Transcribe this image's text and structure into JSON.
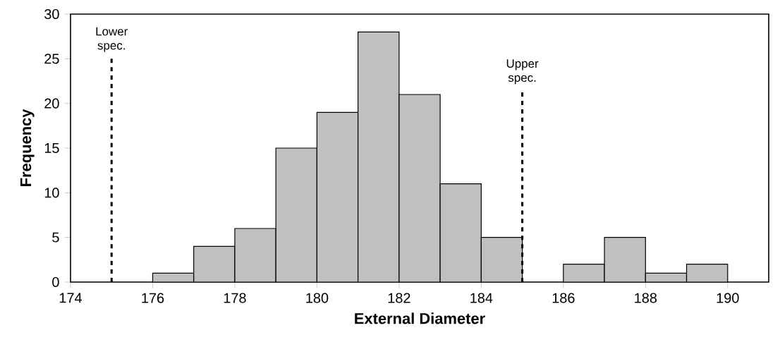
{
  "chart_data": {
    "type": "histogram",
    "xlabel": "External Diameter",
    "ylabel": "Frequency",
    "bins": [
      176,
      177,
      178,
      179,
      180,
      181,
      182,
      183,
      184,
      185,
      186,
      187,
      188,
      189,
      190
    ],
    "values": [
      1,
      4,
      6,
      15,
      19,
      28,
      21,
      11,
      5,
      0,
      2,
      5,
      1,
      2
    ],
    "color": "#c0c0c1",
    "xlim": [
      174,
      191
    ],
    "xticks": [
      174,
      176,
      178,
      180,
      182,
      184,
      186,
      188,
      190
    ],
    "ylim": [
      0,
      30
    ],
    "yticks": [
      0,
      5,
      10,
      15,
      20,
      25,
      30
    ],
    "grid": false,
    "ref_lines": [
      {
        "axis": "x",
        "value": 175,
        "label": "Lower spec.",
        "color": "#000000",
        "line_style": "dashed"
      },
      {
        "axis": "x",
        "value": 185,
        "label": "Upper spec.",
        "color": "#000000",
        "line_style": "dashed"
      }
    ]
  }
}
